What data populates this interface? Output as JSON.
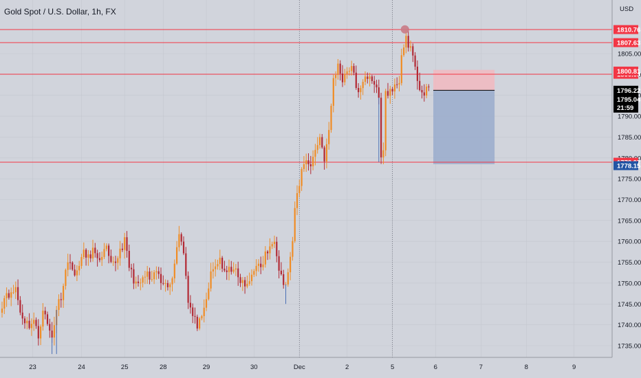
{
  "chart_data": {
    "type": "candlestick",
    "title": "Gold Spot / U.S. Dollar, 1h, FX",
    "y_unit": "USD",
    "ylim": [
      1732,
      1814
    ],
    "y_ticks": [
      "1735.00",
      "1740.00",
      "1745.00",
      "1750.00",
      "1755.00",
      "1760.00",
      "1765.00",
      "1770.00",
      "1775.00",
      "1780.00",
      "1785.00",
      "1790.00",
      "1795.00",
      "1800.00",
      "1805.00"
    ],
    "y_tick_values": [
      1735,
      1740,
      1745,
      1750,
      1755,
      1760,
      1765,
      1770,
      1775,
      1780,
      1785,
      1790,
      1795,
      1800,
      1805
    ],
    "x_ticks": [
      "23",
      "24",
      "25",
      "28",
      "29",
      "30",
      "Dec",
      "2",
      "5",
      "6",
      "7",
      "8",
      "9"
    ],
    "colors": {
      "up": "#f08c24",
      "down": "#b22833",
      "level_line": "#f23645",
      "stop_zone": "#f2b8c0",
      "target_zone": "#9aaccc"
    },
    "horizontal_levels": [
      {
        "price": 1810.76,
        "label": "1810.76",
        "color": "#f23645"
      },
      {
        "price": 1807.63,
        "label": "1807.63",
        "color": "#f23645"
      },
      {
        "price": 1800.05,
        "label": "1800.05",
        "color": "#f23645"
      },
      {
        "price": 1778.97,
        "label": "1778.97",
        "color": "#f23645"
      }
    ],
    "price_labels": [
      {
        "price": 1800.81,
        "label": "1800.81",
        "color": "#f23645"
      },
      {
        "price": 1796.22,
        "label": "1796.22",
        "color": "#000000"
      },
      {
        "price": 1795.04,
        "label": "1795.04",
        "color": "#000000"
      },
      {
        "price": 1778.15,
        "label": "1778.15",
        "color": "#2255a4"
      }
    ],
    "countdown": "21:59",
    "position": {
      "entry": 1796.2,
      "stop": 1801.1,
      "target": 1778.5
    },
    "marker": {
      "price": 1810.8,
      "color": "#c97b86"
    },
    "anchors": [
      [
        0,
        1745
      ],
      [
        2,
        1748
      ],
      [
        4,
        1747
      ],
      [
        6,
        1749
      ],
      [
        8,
        1743
      ],
      [
        10,
        1741
      ],
      [
        12,
        1740
      ],
      [
        14,
        1741
      ],
      [
        16,
        1737
      ],
      [
        18,
        1744
      ],
      [
        20,
        1740
      ],
      [
        22,
        1737
      ],
      [
        24,
        1744
      ],
      [
        26,
        1747
      ],
      [
        28,
        1753
      ],
      [
        30,
        1756
      ],
      [
        32,
        1751
      ],
      [
        34,
        1755
      ],
      [
        36,
        1757
      ],
      [
        38,
        1756
      ],
      [
        40,
        1758
      ],
      [
        42,
        1755
      ],
      [
        44,
        1757
      ],
      [
        46,
        1758
      ],
      [
        48,
        1754
      ],
      [
        50,
        1755
      ],
      [
        52,
        1758
      ],
      [
        54,
        1760
      ],
      [
        56,
        1754
      ],
      [
        58,
        1751
      ],
      [
        60,
        1749
      ],
      [
        62,
        1751
      ],
      [
        64,
        1752
      ],
      [
        66,
        1750
      ],
      [
        68,
        1753
      ],
      [
        70,
        1750
      ],
      [
        72,
        1751
      ],
      [
        74,
        1749
      ],
      [
        76,
        1755
      ],
      [
        78,
        1762
      ],
      [
        80,
        1758
      ],
      [
        82,
        1746
      ],
      [
        84,
        1742
      ],
      [
        86,
        1740
      ],
      [
        88,
        1741
      ],
      [
        90,
        1746
      ],
      [
        92,
        1752
      ],
      [
        94,
        1754
      ],
      [
        96,
        1756
      ],
      [
        98,
        1752
      ],
      [
        100,
        1753
      ],
      [
        102,
        1754
      ],
      [
        104,
        1751
      ],
      [
        106,
        1750
      ],
      [
        108,
        1749
      ],
      [
        110,
        1752
      ],
      [
        112,
        1755
      ],
      [
        114,
        1753
      ],
      [
        116,
        1757
      ],
      [
        118,
        1758
      ],
      [
        120,
        1761
      ],
      [
        122,
        1754
      ],
      [
        124,
        1750
      ],
      [
        125,
        1749
      ],
      [
        126,
        1753
      ],
      [
        128,
        1759
      ],
      [
        129,
        1768
      ],
      [
        130,
        1771
      ],
      [
        132,
        1777
      ],
      [
        134,
        1780
      ],
      [
        136,
        1778
      ],
      [
        138,
        1782
      ],
      [
        140,
        1785
      ],
      [
        142,
        1780
      ],
      [
        144,
        1786
      ],
      [
        146,
        1799
      ],
      [
        148,
        1802
      ],
      [
        150,
        1799
      ],
      [
        152,
        1801
      ],
      [
        154,
        1802
      ],
      [
        156,
        1797
      ],
      [
        158,
        1796
      ],
      [
        160,
        1799
      ],
      [
        162,
        1800
      ],
      [
        164,
        1798
      ],
      [
        166,
        1794
      ],
      [
        167,
        1780
      ],
      [
        168,
        1782
      ],
      [
        169,
        1796
      ],
      [
        170,
        1795
      ],
      [
        172,
        1797
      ],
      [
        174,
        1797
      ],
      [
        175,
        1799
      ],
      [
        176,
        1804
      ],
      [
        178,
        1809
      ],
      [
        180,
        1806
      ],
      [
        182,
        1801
      ],
      [
        184,
        1797
      ],
      [
        186,
        1795
      ],
      [
        188,
        1797
      ]
    ],
    "x_range": [
      0,
      270
    ]
  }
}
